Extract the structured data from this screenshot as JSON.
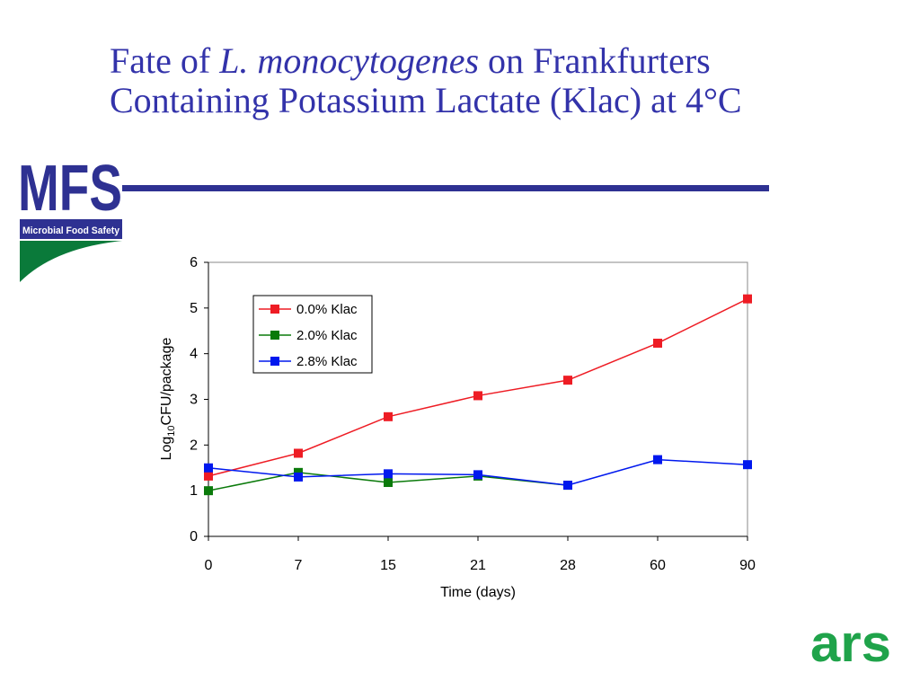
{
  "slide": {
    "title_part1": "Fate of ",
    "title_italic": "L. monocytogenes",
    "title_part2": " on Frankfurters",
    "title_line2": "Containing Potassium Lactate (Klac) at 4°C",
    "mfs_logo_text": "MFS",
    "mfs_logo_subtitle": "Microbial Food Safety",
    "ars_logo_text": "ars",
    "accent_color": "#2e3192",
    "title_color": "#3333aa"
  },
  "chart_data": {
    "type": "line",
    "categories": [
      "0",
      "7",
      "15",
      "21",
      "28",
      "60",
      "90"
    ],
    "ylabel_main": "Log",
    "ylabel_sub": "10",
    "ylabel_rest": "CFU/package",
    "xlabel": "Time (days)",
    "ylim": [
      0,
      6
    ],
    "yticks": [
      0,
      1,
      2,
      3,
      4,
      5,
      6
    ],
    "grid": false,
    "legend_position": "top-left",
    "series": [
      {
        "name": "0.0% Klac",
        "color": "#ee1c24",
        "values": [
          1.32,
          1.82,
          2.62,
          3.08,
          3.42,
          4.23,
          5.2
        ]
      },
      {
        "name": "2.0% Klac",
        "color": "#0a7a0a",
        "values": [
          1.0,
          1.4,
          1.18,
          1.32,
          1.12,
          null,
          null
        ]
      },
      {
        "name": "2.8% Klac",
        "color": "#0018ee",
        "values": [
          1.5,
          1.3,
          1.37,
          1.35,
          1.12,
          1.68,
          1.57
        ]
      }
    ]
  }
}
